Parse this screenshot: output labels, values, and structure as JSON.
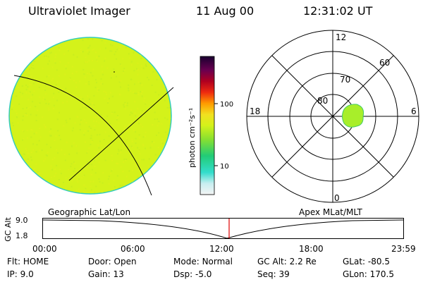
{
  "header": {
    "instrument": "Ultraviolet Imager",
    "date": "11 Aug 00",
    "time": "12:31:02 UT"
  },
  "colorbar": {
    "label": "photon cm⁻²s⁻¹",
    "ticks": [
      "100",
      "10"
    ]
  },
  "polar": {
    "ring_labels": [
      "80",
      "70",
      "60"
    ],
    "mlt_labels": {
      "top": "12",
      "left": "18",
      "right": "6",
      "bottom": "0"
    }
  },
  "projections": {
    "left": "Geographic Lat/Lon",
    "right": "Apex MLat/MLT"
  },
  "altitude_plot": {
    "axis_label": "GC Alt",
    "y_ticks": [
      "9.0",
      "1.8"
    ],
    "x_ticks": [
      "00:00",
      "06:00",
      "12:00",
      "18:00",
      "23:59"
    ]
  },
  "status": {
    "row1": [
      {
        "key": "Flt:",
        "value": "HOME"
      },
      {
        "key": "Door:",
        "value": "Open"
      },
      {
        "key": "Mode:",
        "value": "Normal"
      },
      {
        "key": "GC Alt:",
        "value": "2.2 Re"
      },
      {
        "key": "GLat:",
        "value": "-80.5"
      }
    ],
    "row2": [
      {
        "key": "IP:",
        "value": "9.0"
      },
      {
        "key": "Gain:",
        "value": "13"
      },
      {
        "key": "Dsp:",
        "value": "-5.0"
      },
      {
        "key": "Seq:",
        "value": "39"
      },
      {
        "key": "GLon:",
        "value": "170.5"
      }
    ]
  },
  "colors": {
    "image_fill": "#d4f21a",
    "auroral_blob": "#a8ee2a",
    "time_marker": "#e00000"
  }
}
